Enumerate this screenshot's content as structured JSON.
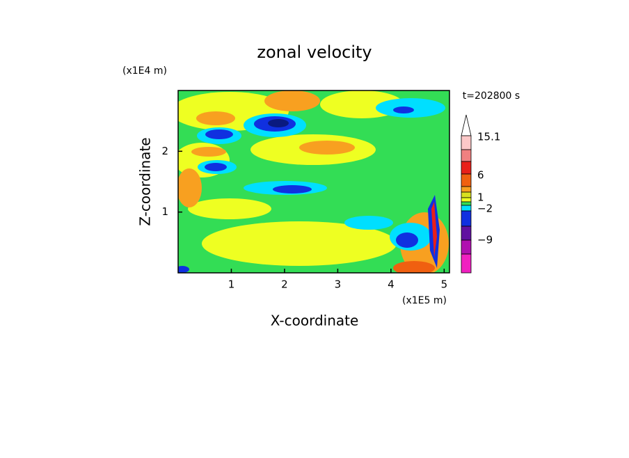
{
  "chart_data": {
    "type": "contour",
    "title": "zonal velocity",
    "x_label": "X-coordinate",
    "y_label": "Z-coordinate",
    "x_unit_label": "(x1E5 m)",
    "y_unit_label": "(x1E4 m)",
    "time_label": "t=202800 s",
    "xlim": [
      0,
      5.1
    ],
    "ylim": [
      0,
      3
    ],
    "xticks": [
      1,
      2,
      3,
      4,
      5
    ],
    "yticks": [
      1,
      2
    ],
    "colorbar_labels": [
      "15.1",
      "6",
      "1",
      "−2",
      "−9"
    ]
  }
}
